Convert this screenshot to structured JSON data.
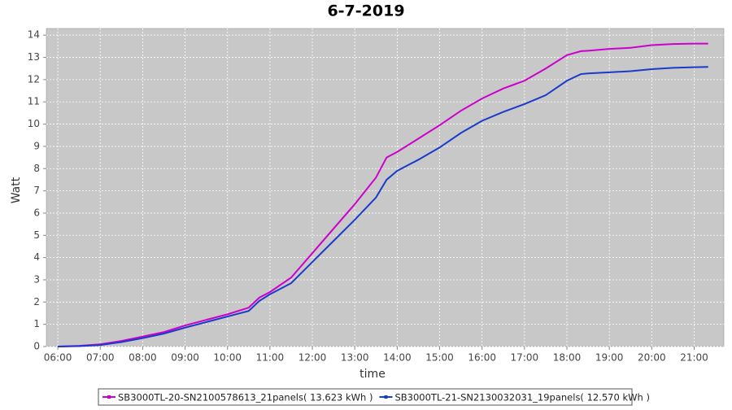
{
  "chart_data": {
    "type": "line",
    "title": "6-7-2019",
    "x_label": "time",
    "y_label": "Watt",
    "x": [
      6,
      6.5,
      7,
      7.5,
      8,
      8.5,
      9,
      9.5,
      10,
      10.5,
      10.75,
      11,
      11.5,
      12,
      12.5,
      13,
      13.5,
      13.75,
      14,
      14.5,
      15,
      15.5,
      16,
      16.5,
      17,
      17.5,
      18,
      18.33,
      18.5,
      19,
      19.5,
      20,
      20.5,
      21,
      21.33
    ],
    "series": [
      {
        "name": "SB3000TL-20-SN2100578613_21panels( 13.623 kWh )",
        "color": "#cc00cc",
        "values": [
          0,
          0.03,
          0.1,
          0.25,
          0.45,
          0.65,
          0.95,
          1.2,
          1.45,
          1.75,
          2.2,
          2.45,
          3.1,
          4.2,
          5.3,
          6.4,
          7.6,
          8.5,
          8.75,
          9.35,
          9.95,
          10.6,
          11.15,
          11.6,
          11.95,
          12.5,
          13.1,
          13.28,
          13.3,
          13.38,
          13.43,
          13.55,
          13.6,
          13.62,
          13.62
        ]
      },
      {
        "name": "SB3000TL-21-SN2130032031_19panels( 12.570 kWh )",
        "color": "#1a3acc",
        "values": [
          0,
          0.02,
          0.07,
          0.2,
          0.38,
          0.58,
          0.85,
          1.1,
          1.35,
          1.6,
          2.05,
          2.35,
          2.85,
          3.8,
          4.75,
          5.7,
          6.7,
          7.5,
          7.9,
          8.4,
          8.95,
          9.6,
          10.15,
          10.55,
          10.9,
          11.3,
          11.95,
          12.25,
          12.28,
          12.33,
          12.38,
          12.47,
          12.53,
          12.56,
          12.57
        ]
      }
    ],
    "xlim": [
      5.73,
      21.7
    ],
    "xticks": [
      {
        "value": 6,
        "label": "06:00"
      },
      {
        "value": 7,
        "label": "07:00"
      },
      {
        "value": 8,
        "label": "08:00"
      },
      {
        "value": 9,
        "label": "09:00"
      },
      {
        "value": 10,
        "label": "10:00"
      },
      {
        "value": 11,
        "label": "11:00"
      },
      {
        "value": 12,
        "label": "12:00"
      },
      {
        "value": 13,
        "label": "13:00"
      },
      {
        "value": 14,
        "label": "14:00"
      },
      {
        "value": 15,
        "label": "15:00"
      },
      {
        "value": 16,
        "label": "16:00"
      },
      {
        "value": 17,
        "label": "17:00"
      },
      {
        "value": 18,
        "label": "18:00"
      },
      {
        "value": 19,
        "label": "19:00"
      },
      {
        "value": 20,
        "label": "20:00"
      },
      {
        "value": 21,
        "label": "21:00"
      }
    ],
    "ylim": [
      0,
      14.3
    ],
    "yticks": [
      0,
      1,
      2,
      3,
      4,
      5,
      6,
      7,
      8,
      9,
      10,
      11,
      12,
      13,
      14
    ],
    "grid": true
  }
}
